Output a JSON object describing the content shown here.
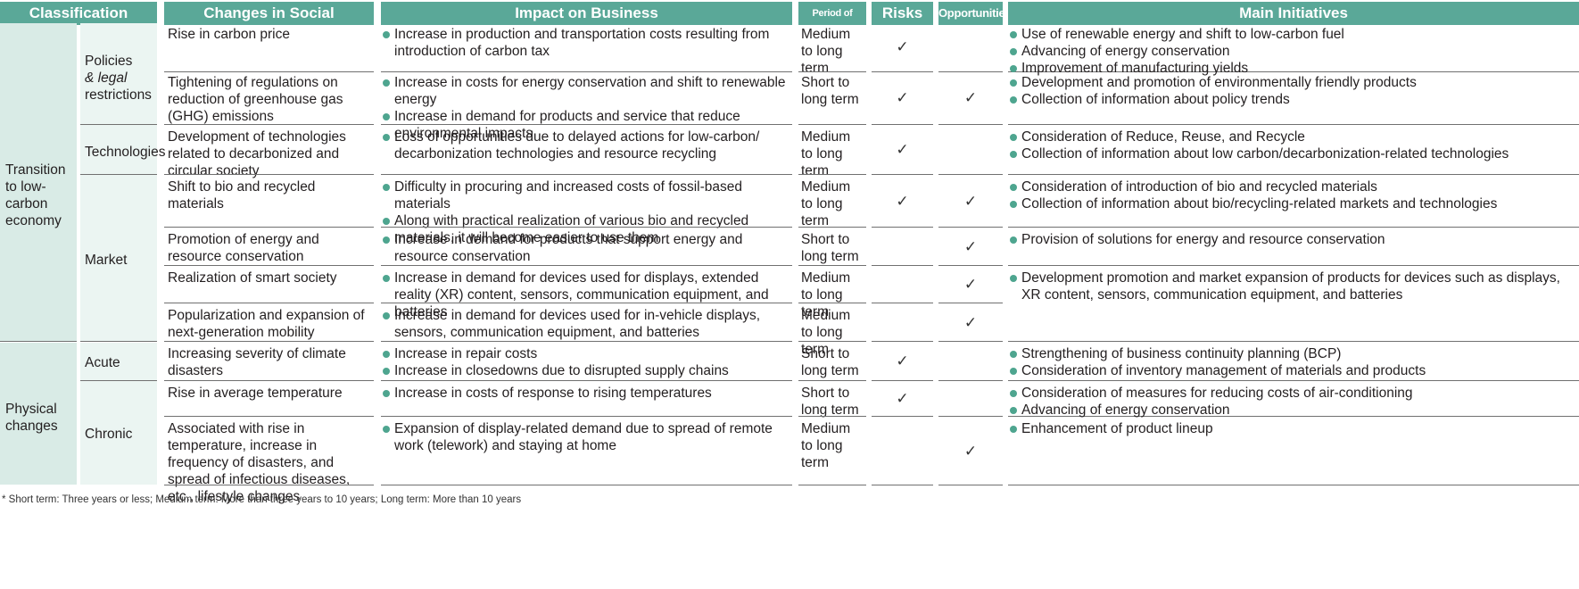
{
  "headers": {
    "classification": "Classification",
    "changes": "Changes in Social Environment",
    "impact": "Impact on Business",
    "period": "Period of Impact*",
    "risks": "Risks",
    "opportunities": "Opportunities",
    "initiatives": "Main Initiatives"
  },
  "categories": {
    "transition": "Transition to low-carbon economy",
    "physical": "Physical changes"
  },
  "subcategories": {
    "policies_a": "Policies",
    "policies_b": "& legal",
    "policies_c": "restrictions",
    "technologies": "Technologies",
    "market": "Market",
    "acute": "Acute",
    "chronic": "Chronic"
  },
  "check_mark": "✓",
  "rows": [
    {
      "change": "Rise in carbon price",
      "impacts": [
        "Increase in production and transportation costs resulting from introduction of carbon tax"
      ],
      "period": "Medium to long term",
      "risk": true,
      "opportunity": false,
      "initiatives": [
        "Use of renewable energy and shift to low-carbon fuel",
        "Advancing of energy conservation",
        "Improvement of manufacturing yields"
      ]
    },
    {
      "change": "Tightening of regulations on reduction of greenhouse gas (GHG) emissions",
      "impacts": [
        "Increase in costs for energy conservation and shift to renewable energy",
        "Increase in demand for products and service that reduce environmental impacts"
      ],
      "period": "Short to long term",
      "risk": true,
      "opportunity": true,
      "initiatives": [
        "Development and promotion of environmentally friendly products",
        "Collection of information about policy trends"
      ]
    },
    {
      "change": "Development of technologies related to decarbonized and circular society",
      "impacts": [
        "Loss of opportunities due to delayed actions for low-carbon/ decarbonization technologies and resource recycling"
      ],
      "period": "Medium to long term",
      "risk": true,
      "opportunity": false,
      "initiatives": [
        "Consideration of Reduce, Reuse, and Recycle",
        "Collection of information about low carbon/decarbonization-related technologies"
      ]
    },
    {
      "change": "Shift to bio and recycled materials",
      "impacts": [
        "Difficulty in procuring and increased costs of fossil-based materials",
        "Along with practical realization of various bio and recycled materials, it will become easier to use them"
      ],
      "period": "Medium to long term",
      "risk": true,
      "opportunity": true,
      "initiatives": [
        "Consideration of introduction of bio and recycled materials",
        "Collection of information about bio/recycling-related markets and technologies"
      ]
    },
    {
      "change": "Promotion of energy and resource conservation",
      "impacts": [
        "Increase in demand for products that support energy and resource conservation"
      ],
      "period": "Short to long term",
      "risk": false,
      "opportunity": true,
      "initiatives": [
        "Provision of solutions for energy and resource conservation"
      ]
    },
    {
      "change": "Realization of smart society",
      "impacts": [
        "Increase in demand for devices used for displays, extended reality (XR) content, sensors, communication equipment, and batteries"
      ],
      "period": "Medium to long term",
      "risk": false,
      "opportunity": true,
      "initiatives": [
        "Development promotion and market expansion of products for devices such as displays, XR content, sensors, communication equipment, and batteries"
      ]
    },
    {
      "change": "Popularization and expansion of next-generation mobility",
      "impacts": [
        "Increase in demand for devices used for in-vehicle displays, sensors, communication equipment, and batteries"
      ],
      "period": "Medium to long term",
      "risk": false,
      "opportunity": true,
      "initiatives": []
    },
    {
      "change": "Increasing severity of climate disasters",
      "impacts": [
        "Increase in repair costs",
        "Increase in closedowns due to disrupted supply chains"
      ],
      "period": "Short to long term",
      "risk": true,
      "opportunity": false,
      "initiatives": [
        "Strengthening of business continuity planning (BCP)",
        "Consideration of inventory management of materials and products"
      ]
    },
    {
      "change": "Rise in average temperature",
      "impacts": [
        "Increase in costs of response to rising temperatures"
      ],
      "period": "Short to long term",
      "risk": true,
      "opportunity": false,
      "initiatives": [
        "Consideration of measures for reducing costs of air-conditioning",
        "Advancing of energy conservation"
      ]
    },
    {
      "change": "Associated with rise in temperature, increase in frequency of disasters, and spread of infectious diseases, etc., lifestyle changes",
      "impacts": [
        "Expansion of display-related demand due to spread of remote work (telework) and staying at home"
      ],
      "period": "Medium to long term",
      "risk": false,
      "opportunity": true,
      "initiatives": [
        "Enhancement of product lineup"
      ]
    }
  ],
  "footnote": "* Short term: Three years or less; Medium term: More than three years to 10 years; Long term: More than 10 years"
}
